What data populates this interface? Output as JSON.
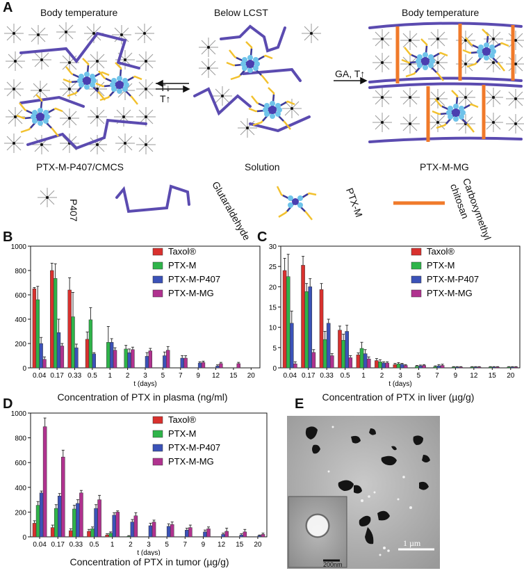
{
  "panels": {
    "a": "A",
    "b": "B",
    "c": "C",
    "d": "D",
    "e": "E"
  },
  "schematic": {
    "state1_title": "Body temperature",
    "state2_title": "Below LCST",
    "state3_title": "Body temperature",
    "state1_caption": "PTX-M-P407/CMCS",
    "state2_caption": "Solution",
    "state3_caption": "PTX-M-MG",
    "arrow1_top": "T↓",
    "arrow1_bottom": "T↑",
    "arrow2_label": "GA, T↑",
    "legend": {
      "p407": "P407",
      "glutaraldehyde": "Glutaraldehyde",
      "ptxm": "PTX-M",
      "cmcs_line1": "Carboxymethyl",
      "cmcs_line2": "chitosan"
    },
    "colors": {
      "polymer": "#5b4bb0",
      "crosslink": "#f07a2a",
      "micelle_core": "#4a3fb0",
      "micelle_corona": "#6fc3ea",
      "micelle_tails": "#f2c12e",
      "mesh": "#9a9a9a"
    }
  },
  "colors": {
    "Taxol": "#d9312e",
    "PTX-M": "#2fb44a",
    "PTX-M-P407": "#3b52b8",
    "PTX-M-MG": "#b0328f"
  },
  "chart_data": [
    {
      "type": "bar",
      "panel": "B",
      "caption": "Concentration of PTX in plasma (ng/ml)",
      "xlabel": "t (days)",
      "ylim": [
        0,
        1000
      ],
      "yticks": [
        0,
        200,
        400,
        600,
        800,
        1000
      ],
      "categories": [
        "0.04",
        "0.17",
        "0.33",
        "0.5",
        "1",
        "2",
        "3",
        "5",
        "7",
        "9",
        "12",
        "15",
        "20"
      ],
      "series": [
        {
          "name": "Taxol®",
          "values": [
            650,
            800,
            640,
            235,
            0,
            0,
            0,
            0,
            0,
            0,
            0,
            0,
            0
          ],
          "errors": [
            10,
            60,
            100,
            60,
            0,
            0,
            0,
            0,
            0,
            0,
            0,
            0,
            0
          ]
        },
        {
          "name": "PTX-M",
          "values": [
            560,
            735,
            420,
            395,
            210,
            155,
            0,
            0,
            0,
            0,
            0,
            0,
            0
          ],
          "errors": [
            110,
            120,
            200,
            100,
            130,
            30,
            0,
            0,
            0,
            0,
            0,
            0,
            0
          ]
        },
        {
          "name": "PTX-M-P407",
          "values": [
            200,
            290,
            165,
            115,
            210,
            125,
            95,
            100,
            80,
            40,
            15,
            0,
            0
          ],
          "errors": [
            50,
            110,
            30,
            10,
            30,
            30,
            30,
            30,
            20,
            10,
            10,
            0,
            0
          ]
        },
        {
          "name": "PTX-M-MG",
          "values": [
            70,
            180,
            0,
            0,
            145,
            150,
            140,
            145,
            80,
            45,
            35,
            35,
            0
          ],
          "errors": [
            20,
            20,
            0,
            0,
            20,
            20,
            20,
            30,
            20,
            10,
            10,
            10,
            0
          ]
        }
      ]
    },
    {
      "type": "bar",
      "panel": "C",
      "caption": "Concentration of PTX in liver (µg/g)",
      "xlabel": "t (days)",
      "ylim": [
        0,
        30
      ],
      "yticks": [
        0,
        5,
        10,
        15,
        20,
        25,
        30
      ],
      "categories": [
        "0.04",
        "0.17",
        "0.33",
        "0.5",
        "1",
        "2",
        "3",
        "5",
        "7",
        "9",
        "12",
        "15",
        "20"
      ],
      "series": [
        {
          "name": "Taxol®",
          "values": [
            24,
            25.3,
            19.3,
            9.3,
            3.2,
            1.8,
            0.8,
            0,
            0,
            0,
            0,
            0,
            0
          ],
          "errors": [
            3,
            2.2,
            1.5,
            1,
            0.5,
            0.5,
            0.3,
            0,
            0,
            0,
            0,
            0,
            0
          ]
        },
        {
          "name": "PTX-M",
          "values": [
            22.5,
            18.8,
            7,
            6.8,
            4.8,
            1.5,
            1,
            0.4,
            0.3,
            0.2,
            0.2,
            0.2,
            0.2
          ],
          "errors": [
            5.5,
            2,
            2,
            1.5,
            1.5,
            0.5,
            0.3,
            0.2,
            0.2,
            0.1,
            0.1,
            0.1,
            0.1
          ]
        },
        {
          "name": "PTX-M-P407",
          "values": [
            11,
            20,
            11,
            9,
            3.5,
            1.2,
            0.9,
            0.5,
            0.5,
            0.2,
            0.2,
            0.2,
            0.2
          ],
          "errors": [
            3,
            2,
            1,
            1.5,
            1,
            0.3,
            0.2,
            0.2,
            0.3,
            0.1,
            0.1,
            0.1,
            0.1
          ]
        },
        {
          "name": "PTX-M-MG",
          "values": [
            1,
            3.8,
            3,
            2.5,
            2.2,
            1.2,
            0.6,
            0.6,
            0.6,
            0.2,
            0.2,
            0.2,
            0.2
          ],
          "errors": [
            0.5,
            0.7,
            0.5,
            0.5,
            0.5,
            0.3,
            0.2,
            0.2,
            0.3,
            0.1,
            0.1,
            0.1,
            0.1
          ]
        }
      ]
    },
    {
      "type": "bar",
      "panel": "D",
      "caption": "Concentration of PTX in tumor (µg/g)",
      "xlabel": "t (days)",
      "ylim": [
        0,
        1000
      ],
      "yticks": [
        0,
        200,
        400,
        600,
        800,
        1000
      ],
      "categories": [
        "0.04",
        "0.17",
        "0.33",
        "0.5",
        "1",
        "2",
        "3",
        "5",
        "7",
        "9",
        "12",
        "15",
        "20"
      ],
      "series": [
        {
          "name": "Taxol®",
          "values": [
            110,
            75,
            50,
            45,
            15,
            0,
            0,
            0,
            0,
            0,
            0,
            0,
            0
          ],
          "errors": [
            20,
            20,
            15,
            15,
            10,
            0,
            0,
            0,
            0,
            0,
            0,
            0,
            0
          ]
        },
        {
          "name": "PTX-M",
          "values": [
            255,
            230,
            225,
            65,
            30,
            5,
            0,
            0,
            0,
            0,
            0,
            0,
            0
          ],
          "errors": [
            30,
            30,
            30,
            15,
            10,
            5,
            0,
            0,
            0,
            0,
            0,
            0,
            0
          ]
        },
        {
          "name": "PTX-M-P407",
          "values": [
            355,
            330,
            270,
            230,
            175,
            120,
            90,
            85,
            55,
            40,
            20,
            15,
            10
          ],
          "errors": [
            15,
            20,
            30,
            30,
            20,
            20,
            20,
            20,
            15,
            15,
            10,
            10,
            5
          ]
        },
        {
          "name": "PTX-M-MG",
          "values": [
            890,
            645,
            355,
            300,
            200,
            170,
            120,
            100,
            75,
            65,
            45,
            40,
            20
          ],
          "errors": [
            70,
            55,
            20,
            35,
            10,
            25,
            15,
            20,
            20,
            15,
            25,
            20,
            10
          ]
        }
      ]
    }
  ],
  "tem": {
    "scale_bar_main": "1 µm",
    "scale_bar_inset": "200nm"
  }
}
